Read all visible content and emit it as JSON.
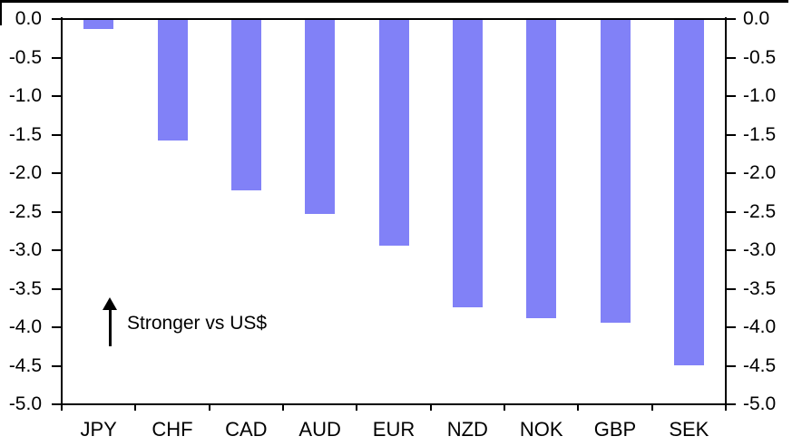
{
  "chart_data": {
    "type": "bar",
    "title": "",
    "xlabel": "",
    "ylabel": "",
    "categories": [
      "JPY",
      "CHF",
      "CAD",
      "AUD",
      "EUR",
      "NZD",
      "NOK",
      "GBP",
      "SEK"
    ],
    "values": [
      -0.12,
      -1.56,
      -2.21,
      -2.52,
      -2.93,
      -3.73,
      -3.87,
      -3.93,
      -4.48
    ],
    "ylim": [
      -5.0,
      0.0
    ],
    "ytick_step": 0.5,
    "ytick_labels": [
      "0.0",
      "-0.5",
      "-1.0",
      "-1.5",
      "-2.0",
      "-2.5",
      "-3.0",
      "-3.5",
      "-4.0",
      "-4.5",
      "-5.0"
    ],
    "dual_y_axis": true,
    "grid": false,
    "legend": null,
    "bar_color": "#8181F7",
    "axis_color": "#000000",
    "annotation": {
      "text": "Stronger vs US$",
      "arrow_direction": "up"
    }
  }
}
